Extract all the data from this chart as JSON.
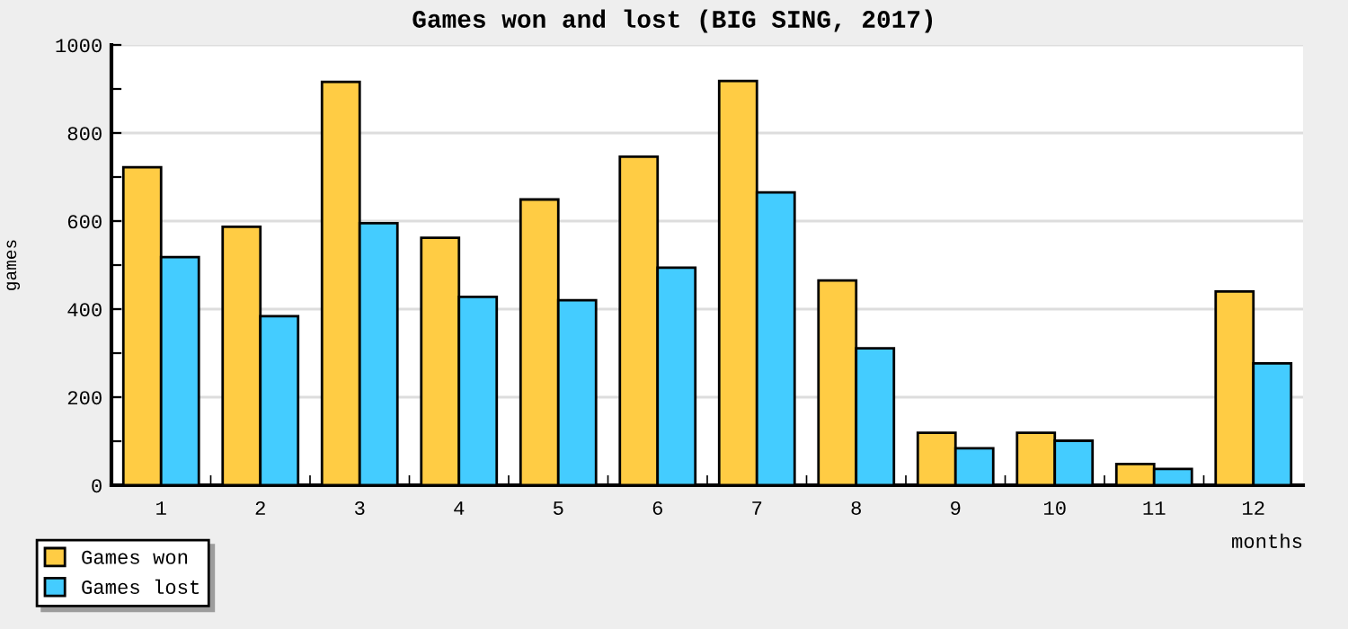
{
  "chart_data": {
    "type": "bar",
    "title": "Games won and lost (BIG SING, 2017)",
    "xlabel": "months",
    "ylabel": "games",
    "categories": [
      "1",
      "2",
      "3",
      "4",
      "5",
      "6",
      "7",
      "8",
      "9",
      "10",
      "11",
      "12"
    ],
    "series": [
      {
        "name": "Games won",
        "color": "#ffcc44",
        "values": [
          722,
          587,
          916,
          562,
          649,
          746,
          918,
          465,
          119,
          119,
          48,
          440
        ]
      },
      {
        "name": "Games lost",
        "color": "#44ccff",
        "values": [
          518,
          384,
          595,
          428,
          420,
          494,
          665,
          311,
          84,
          101,
          37,
          277
        ]
      }
    ],
    "ylim": [
      0,
      1000
    ],
    "yticks": [
      0,
      {
        "value": 100,
        "label": null
      },
      200,
      {
        "value": 300,
        "label": null
      },
      400,
      {
        "value": 500,
        "label": null
      },
      600,
      {
        "value": 700,
        "label": null
      },
      800,
      {
        "value": 900,
        "label": null
      },
      1000
    ],
    "grid": "y",
    "legend": "bottom left"
  }
}
